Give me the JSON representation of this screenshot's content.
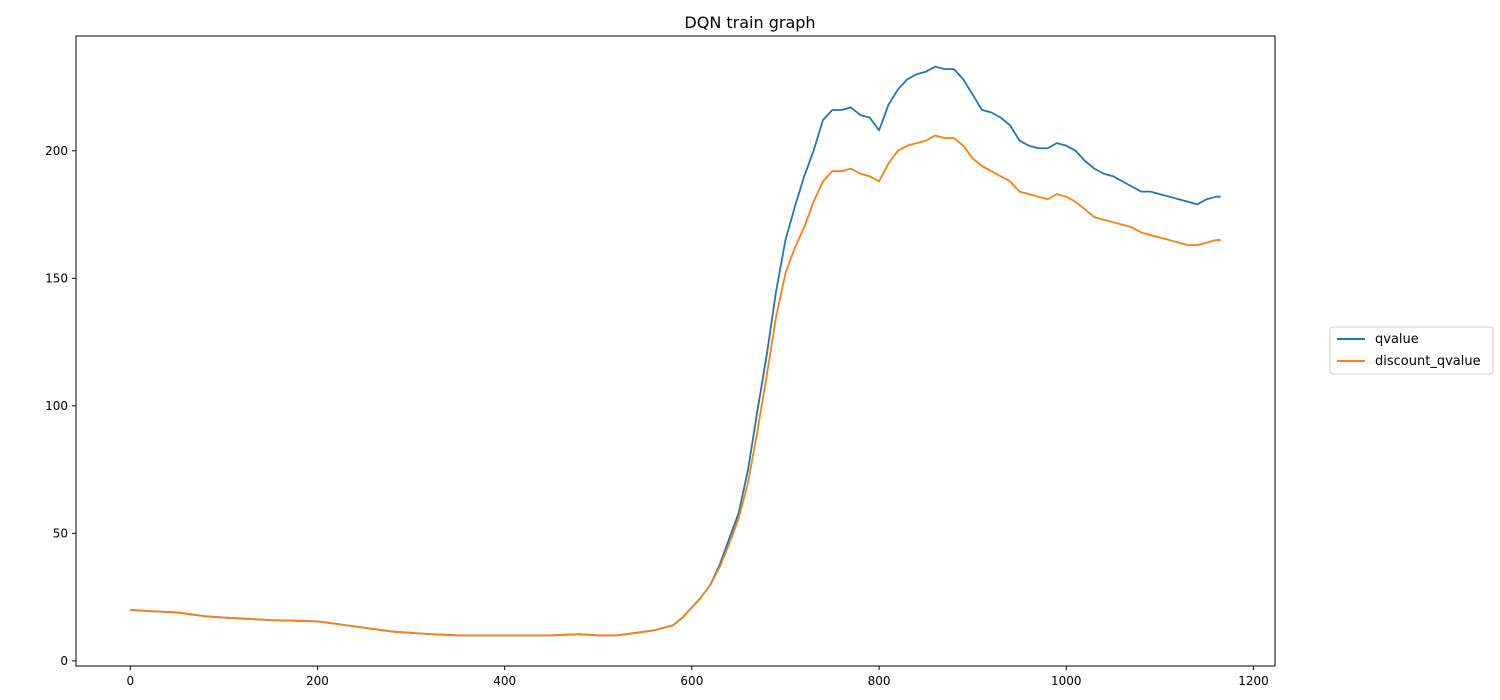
{
  "chart_data": {
    "type": "line",
    "title": "DQN train graph",
    "xlabel": "",
    "ylabel": "",
    "xlim": [
      -58,
      1223
    ],
    "ylim": [
      -2,
      245
    ],
    "xticks": [
      0,
      200,
      400,
      600,
      800,
      1000,
      1200
    ],
    "yticks": [
      0,
      50,
      100,
      150,
      200
    ],
    "grid": false,
    "legend": {
      "placement": "center-right-outside"
    },
    "x": [
      0,
      20,
      50,
      80,
      100,
      150,
      200,
      220,
      250,
      280,
      300,
      320,
      350,
      380,
      400,
      450,
      480,
      500,
      520,
      540,
      560,
      580,
      590,
      600,
      610,
      620,
      630,
      640,
      650,
      660,
      670,
      680,
      690,
      700,
      710,
      720,
      730,
      740,
      750,
      760,
      770,
      780,
      790,
      800,
      810,
      820,
      830,
      840,
      850,
      860,
      870,
      880,
      890,
      900,
      910,
      920,
      930,
      940,
      950,
      960,
      970,
      980,
      990,
      1000,
      1010,
      1020,
      1030,
      1040,
      1050,
      1060,
      1070,
      1080,
      1090,
      1100,
      1110,
      1120,
      1130,
      1140,
      1150,
      1160,
      1165
    ],
    "series": [
      {
        "name": "qvalue",
        "color": "#1f77b4",
        "values": [
          20,
          19.5,
          19,
          17.5,
          17,
          16,
          15.5,
          14.5,
          13,
          11.5,
          11,
          10.5,
          10,
          10,
          10,
          10,
          10.5,
          10,
          10,
          11,
          12,
          14,
          17,
          21,
          25,
          30,
          38,
          48,
          58,
          75,
          98,
          120,
          145,
          165,
          178,
          190,
          200,
          212,
          216,
          216,
          217,
          214,
          213,
          208,
          218,
          224,
          228,
          230,
          231,
          233,
          232,
          232,
          228,
          222,
          216,
          215,
          213,
          210,
          204,
          202,
          201,
          201,
          203,
          202,
          200,
          196,
          193,
          191,
          190,
          188,
          186,
          184,
          184,
          183,
          182,
          181,
          180,
          179,
          181,
          182,
          182
        ]
      },
      {
        "name": "discount_qvalue",
        "color": "#ff7f0e",
        "values": [
          20,
          19.5,
          19,
          17.5,
          17,
          16,
          15.5,
          14.5,
          13,
          11.5,
          11,
          10.5,
          10,
          10,
          10,
          10,
          10.5,
          10,
          10,
          11,
          12,
          14,
          17,
          21,
          25,
          30,
          37,
          46,
          56,
          70,
          90,
          112,
          135,
          152,
          162,
          170,
          180,
          188,
          192,
          192,
          193,
          191,
          190,
          188,
          195,
          200,
          202,
          203,
          204,
          206,
          205,
          205,
          202,
          197,
          194,
          192,
          190,
          188,
          184,
          183,
          182,
          181,
          183,
          182,
          180,
          177,
          174,
          173,
          172,
          171,
          170,
          168,
          167,
          166,
          165,
          164,
          163,
          163,
          164,
          165,
          165
        ]
      }
    ]
  }
}
